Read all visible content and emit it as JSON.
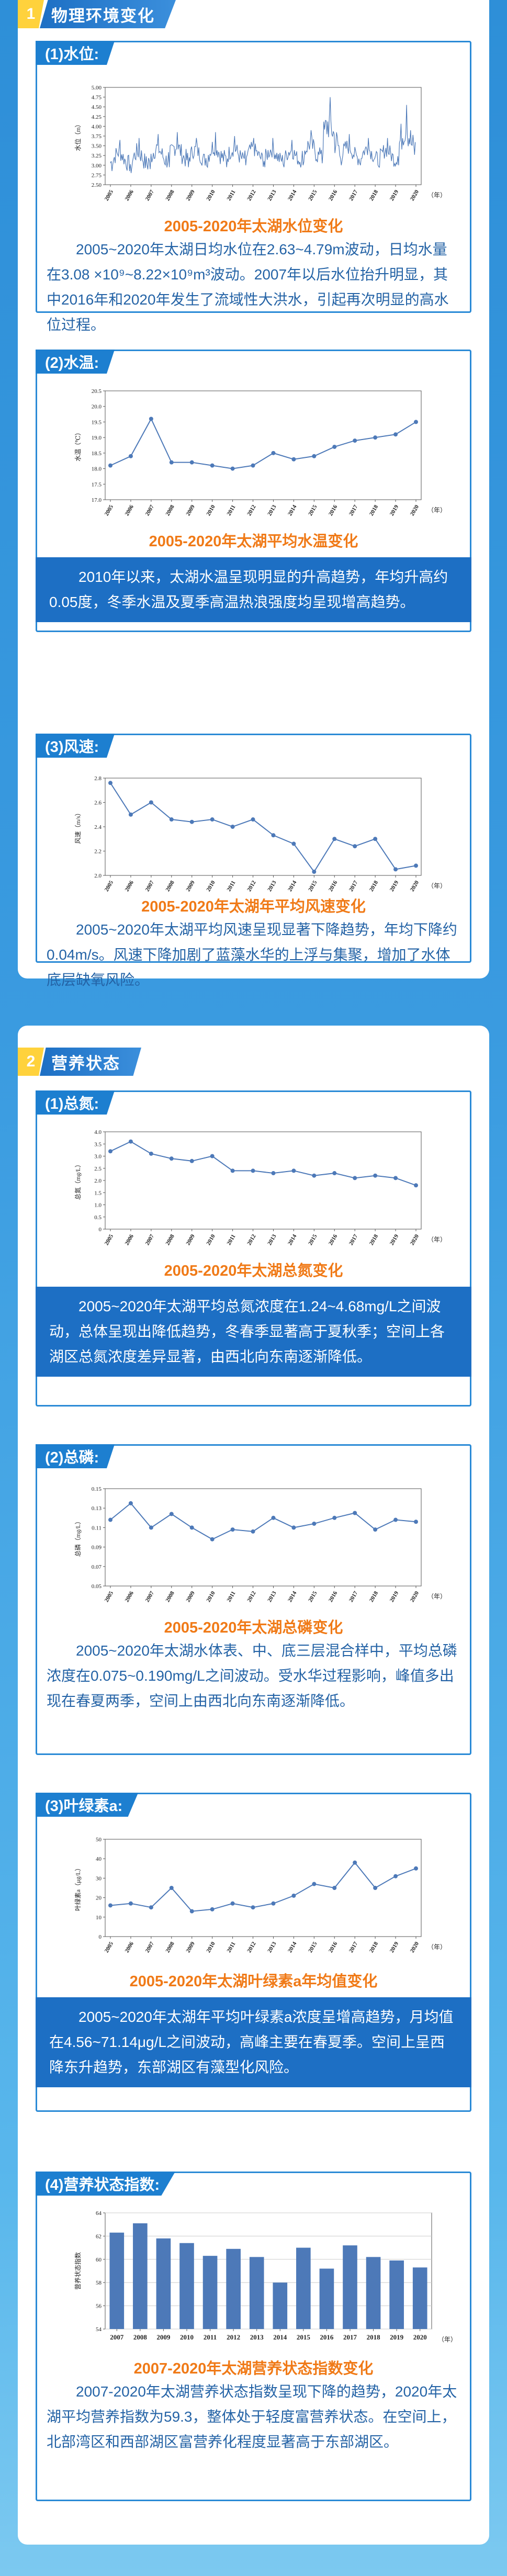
{
  "sections": [
    {
      "num": "1",
      "title": "物理环境变化"
    },
    {
      "num": "2",
      "title": "营养状态"
    }
  ],
  "year_unit": "（年）",
  "panels": {
    "water_level": {
      "heading": "(1)水位:",
      "caption": "2005-2020年太湖水位变化",
      "text": "2005~2020年太湖日均水位在2.63~4.79m波动，日均水量在3.08 ×10⁹~8.22×10⁹m³波动。2007年以后水位抬升明显，其中2016年和2020年发生了流域性大洪水，引起再次明显的高水位过程。"
    },
    "water_temp": {
      "heading": "(2)水温:",
      "caption": "2005-2020年太湖平均水温变化",
      "text": "2010年以来，太湖水温呈现明显的升高趋势，年均升高约0.05度，冬季水温及夏季高温热浪强度均呈现增高趋势。"
    },
    "wind": {
      "heading": "(3)风速:",
      "caption": "2005-2020年太湖年平均风速变化",
      "text": "2005~2020年太湖平均风速呈现显著下降趋势，年均下降约0.04m/s。风速下降加剧了蓝藻水华的上浮与集聚，增加了水体底层缺氧风险。"
    },
    "tn": {
      "heading": "(1)总氮:",
      "caption": "2005-2020年太湖总氮变化",
      "text": "2005~2020年太湖平均总氮浓度在1.24~4.68mg/L之间波动，总体呈现出降低趋势，冬春季显著高于夏秋季；空间上各湖区总氮浓度差异显著，由西北向东南逐渐降低。"
    },
    "tp": {
      "heading": "(2)总磷:",
      "caption": "2005-2020年太湖总磷变化",
      "text": "2005~2020年太湖水体表、中、底三层混合样中，平均总磷浓度在0.075~0.190mg/L之间波动。受水华过程影响，峰值多出现在春夏两季，空间上由西北向东南逐渐降低。"
    },
    "chla": {
      "heading": "(3)叶绿素a:",
      "caption": "2005-2020年太湖叶绿素a年均值变化",
      "text": "2005~2020年太湖年平均叶绿素a浓度呈增高趋势，月均值在4.56~71.14μg/L之间波动，高峰主要在春夏季。空间上呈西降东升趋势，东部湖区有藻型化风险。"
    },
    "tli": {
      "heading": "(4)营养状态指数:",
      "caption": "2007-2020年太湖营养状态指数变化",
      "text": "2007-2020年太湖营养状态指数呈现下降的趋势，2020年太湖平均营养指数为59.3，整体处于轻度富营养状态。在空间上，北部湾区和西部湖区富营养化程度显著高于东部湖区。"
    }
  },
  "chart_data": [
    {
      "id": "water_level",
      "type": "line",
      "ylabel": "水位（m）",
      "ylim": [
        2.5,
        5.0
      ],
      "yticks": [
        "2.50",
        "2.75",
        "3.00",
        "3.25",
        "3.50",
        "3.75",
        "4.00",
        "4.25",
        "4.50",
        "4.75",
        "5.00"
      ],
      "x": [
        2005,
        2006,
        2007,
        2008,
        2009,
        2010,
        2011,
        2012,
        2013,
        2014,
        2015,
        2016,
        2017,
        2018,
        2019,
        2020
      ],
      "series_note": "daily series, summarized as annual min/max envelope",
      "annual_min": [
        2.85,
        2.8,
        2.9,
        2.95,
        2.95,
        2.95,
        2.95,
        3.0,
        2.95,
        2.95,
        3.0,
        3.05,
        3.0,
        3.0,
        2.95,
        3.0
      ],
      "annual_max": [
        3.65,
        3.7,
        3.8,
        3.85,
        3.7,
        3.85,
        3.75,
        3.7,
        3.7,
        3.65,
        3.9,
        4.75,
        3.8,
        3.7,
        3.7,
        4.55
      ]
    },
    {
      "id": "water_temp",
      "type": "line",
      "ylabel": "水温（℃）",
      "ylim": [
        17.0,
        20.5
      ],
      "yticks": [
        "17.0",
        "17.5",
        "18.0",
        "18.5",
        "19.0",
        "19.5",
        "20.0",
        "20.5"
      ],
      "x": [
        2005,
        2006,
        2007,
        2008,
        2009,
        2010,
        2011,
        2012,
        2013,
        2014,
        2015,
        2016,
        2017,
        2018,
        2019,
        2020
      ],
      "values": [
        18.1,
        18.4,
        19.6,
        18.2,
        18.2,
        18.1,
        18.0,
        18.1,
        18.5,
        18.3,
        18.4,
        18.7,
        18.9,
        19.0,
        19.1,
        19.5
      ]
    },
    {
      "id": "wind",
      "type": "line",
      "ylabel": "风速（m/s）",
      "ylim": [
        2.0,
        2.8
      ],
      "yticks": [
        "2.0",
        "2.2",
        "2.4",
        "2.6",
        "2.8"
      ],
      "x": [
        2005,
        2006,
        2007,
        2008,
        2009,
        2010,
        2011,
        2012,
        2013,
        2014,
        2015,
        2016,
        2017,
        2018,
        2019,
        2020
      ],
      "values": [
        2.76,
        2.5,
        2.6,
        2.46,
        2.44,
        2.46,
        2.4,
        2.46,
        2.33,
        2.26,
        2.03,
        2.3,
        2.24,
        2.3,
        2.05,
        2.08
      ]
    },
    {
      "id": "tn",
      "type": "line",
      "ylabel": "总氮（mg/L）",
      "ylim": [
        0,
        4.0
      ],
      "yticks": [
        "0",
        "0.5",
        "1.0",
        "1.5",
        "2.0",
        "2.5",
        "3.0",
        "3.5",
        "4.0"
      ],
      "x": [
        2005,
        2006,
        2007,
        2008,
        2009,
        2010,
        2011,
        2012,
        2013,
        2014,
        2015,
        2016,
        2017,
        2018,
        2019,
        2020
      ],
      "values": [
        3.2,
        3.6,
        3.1,
        2.9,
        2.8,
        3.0,
        2.4,
        2.4,
        2.3,
        2.4,
        2.2,
        2.3,
        2.1,
        2.2,
        2.1,
        1.8
      ]
    },
    {
      "id": "tp",
      "type": "line",
      "ylabel": "总磷（mg/L）",
      "ylim": [
        0.05,
        0.15
      ],
      "yticks": [
        "0.05",
        "0.07",
        "0.09",
        "0.11",
        "0.13",
        "0.15"
      ],
      "x": [
        2005,
        2006,
        2007,
        2008,
        2009,
        2010,
        2011,
        2012,
        2013,
        2014,
        2015,
        2016,
        2017,
        2018,
        2019,
        2020
      ],
      "values": [
        0.118,
        0.135,
        0.11,
        0.124,
        0.11,
        0.098,
        0.108,
        0.106,
        0.12,
        0.11,
        0.114,
        0.12,
        0.125,
        0.108,
        0.118,
        0.116
      ]
    },
    {
      "id": "chla",
      "type": "line",
      "ylabel": "叶绿素a（μg/L）",
      "ylim": [
        0,
        50
      ],
      "yticks": [
        "0",
        "10",
        "20",
        "30",
        "40",
        "50"
      ],
      "x": [
        2005,
        2006,
        2007,
        2008,
        2009,
        2010,
        2011,
        2012,
        2013,
        2014,
        2015,
        2016,
        2017,
        2018,
        2019,
        2020
      ],
      "values": [
        16,
        17,
        15,
        25,
        13,
        14,
        17,
        15,
        17,
        21,
        27,
        25,
        38,
        25,
        31,
        35
      ]
    },
    {
      "id": "tli",
      "type": "bar",
      "ylabel": "营养状态指数",
      "ylim": [
        54,
        64
      ],
      "yticks": [
        "54",
        "56",
        "58",
        "60",
        "62",
        "64"
      ],
      "categories": [
        2007,
        2008,
        2009,
        2010,
        2011,
        2012,
        2013,
        2014,
        2015,
        2016,
        2017,
        2018,
        2019,
        2020
      ],
      "values": [
        62.3,
        63.1,
        61.8,
        61.4,
        60.3,
        60.9,
        60.2,
        58.0,
        61.0,
        59.2,
        61.2,
        60.2,
        59.9,
        59.3
      ]
    }
  ]
}
